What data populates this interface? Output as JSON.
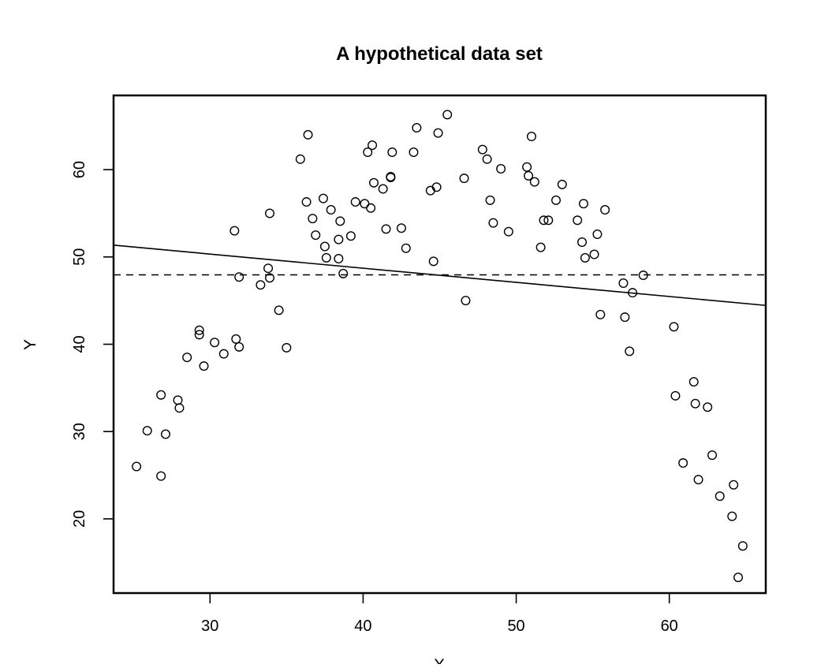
{
  "chart_data": {
    "type": "scatter",
    "title": "A hypothetical data set",
    "xlabel": "X",
    "ylabel": "Y",
    "xlim": [
      23.7,
      66.3
    ],
    "ylim": [
      11.5,
      68.5
    ],
    "x_ticks": [
      30,
      40,
      50,
      60
    ],
    "y_ticks": [
      20,
      30,
      40,
      50,
      60
    ],
    "grid": false,
    "legend": "none",
    "marker": "open-circle",
    "colors": {
      "points": "#000000",
      "lines": "#000000",
      "background": "#ffffff"
    },
    "points": [
      [
        25.2,
        26.0
      ],
      [
        25.9,
        30.1
      ],
      [
        26.8,
        34.2
      ],
      [
        26.8,
        24.9
      ],
      [
        27.1,
        29.7
      ],
      [
        27.9,
        33.6
      ],
      [
        28.0,
        32.7
      ],
      [
        28.5,
        38.5
      ],
      [
        29.3,
        41.6
      ],
      [
        29.3,
        41.1
      ],
      [
        29.6,
        37.5
      ],
      [
        30.3,
        40.2
      ],
      [
        30.9,
        38.9
      ],
      [
        31.6,
        53.0
      ],
      [
        31.7,
        40.6
      ],
      [
        31.9,
        39.7
      ],
      [
        31.9,
        47.7
      ],
      [
        33.3,
        46.8
      ],
      [
        33.8,
        48.7
      ],
      [
        33.9,
        47.6
      ],
      [
        33.9,
        55.0
      ],
      [
        34.5,
        43.9
      ],
      [
        35.0,
        39.6
      ],
      [
        35.9,
        61.2
      ],
      [
        36.3,
        56.3
      ],
      [
        36.4,
        64.0
      ],
      [
        36.7,
        54.4
      ],
      [
        36.9,
        52.5
      ],
      [
        37.4,
        56.7
      ],
      [
        37.5,
        51.2
      ],
      [
        37.6,
        49.9
      ],
      [
        37.9,
        55.4
      ],
      [
        38.4,
        52.0
      ],
      [
        38.4,
        49.8
      ],
      [
        38.5,
        54.1
      ],
      [
        38.7,
        48.1
      ],
      [
        39.2,
        52.4
      ],
      [
        39.5,
        56.3
      ],
      [
        40.1,
        56.1
      ],
      [
        40.3,
        62.0
      ],
      [
        40.5,
        55.6
      ],
      [
        40.6,
        62.8
      ],
      [
        40.7,
        58.5
      ],
      [
        41.3,
        57.8
      ],
      [
        41.5,
        53.2
      ],
      [
        41.8,
        59.2
      ],
      [
        41.8,
        59.1
      ],
      [
        41.9,
        62.0
      ],
      [
        42.5,
        53.3
      ],
      [
        42.8,
        51.0
      ],
      [
        43.3,
        62.0
      ],
      [
        43.5,
        64.8
      ],
      [
        44.4,
        57.6
      ],
      [
        44.6,
        49.5
      ],
      [
        44.8,
        58.0
      ],
      [
        44.9,
        64.2
      ],
      [
        45.5,
        66.3
      ],
      [
        46.6,
        59.0
      ],
      [
        46.7,
        45.0
      ],
      [
        47.8,
        62.3
      ],
      [
        48.1,
        61.2
      ],
      [
        48.3,
        56.5
      ],
      [
        48.5,
        53.9
      ],
      [
        49.0,
        60.1
      ],
      [
        49.5,
        52.9
      ],
      [
        50.7,
        60.3
      ],
      [
        50.8,
        59.3
      ],
      [
        51.0,
        63.8
      ],
      [
        51.2,
        58.6
      ],
      [
        51.6,
        51.1
      ],
      [
        51.8,
        54.2
      ],
      [
        52.1,
        54.2
      ],
      [
        52.6,
        56.5
      ],
      [
        53.0,
        58.3
      ],
      [
        54.0,
        54.2
      ],
      [
        54.3,
        51.7
      ],
      [
        54.4,
        56.1
      ],
      [
        54.5,
        49.9
      ],
      [
        55.1,
        50.3
      ],
      [
        55.3,
        52.6
      ],
      [
        55.5,
        43.4
      ],
      [
        55.8,
        55.4
      ],
      [
        57.0,
        47.0
      ],
      [
        57.1,
        43.1
      ],
      [
        57.4,
        39.2
      ],
      [
        57.6,
        45.9
      ],
      [
        58.3,
        47.9
      ],
      [
        60.3,
        42.0
      ],
      [
        60.4,
        34.1
      ],
      [
        60.9,
        26.4
      ],
      [
        61.6,
        35.7
      ],
      [
        61.7,
        33.2
      ],
      [
        61.9,
        24.5
      ],
      [
        62.5,
        32.8
      ],
      [
        62.8,
        27.3
      ],
      [
        63.3,
        22.6
      ],
      [
        64.1,
        20.3
      ],
      [
        64.2,
        23.9
      ],
      [
        64.5,
        13.3
      ],
      [
        64.8,
        16.9
      ]
    ],
    "lines": [
      {
        "style": "solid",
        "x": [
          23.7,
          66.3
        ],
        "y": [
          51.35,
          44.45
        ]
      },
      {
        "style": "dashed",
        "x": [
          23.7,
          66.3
        ],
        "y": [
          47.95,
          47.95
        ]
      }
    ]
  }
}
